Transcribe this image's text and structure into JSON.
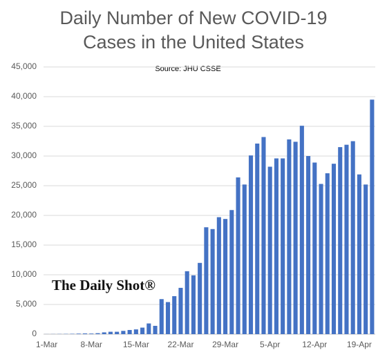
{
  "chart_data": {
    "type": "bar",
    "title_lines": [
      "Daily Number of New COVID-19",
      "Cases in the United States"
    ],
    "subtitle": "Source: JHU CSSE",
    "annotation": "The Daily Shot®",
    "categories": [
      "1-Mar",
      null,
      null,
      null,
      null,
      null,
      null,
      "8-Mar",
      null,
      null,
      null,
      null,
      null,
      null,
      "15-Mar",
      null,
      null,
      null,
      null,
      null,
      null,
      "22-Mar",
      null,
      null,
      null,
      null,
      null,
      null,
      "29-Mar",
      null,
      null,
      null,
      null,
      null,
      null,
      "5-Apr",
      null,
      null,
      null,
      null,
      null,
      null,
      "12-Apr",
      null,
      null,
      null,
      null,
      null,
      null,
      "19-Apr",
      null,
      null
    ],
    "values": [
      10,
      20,
      30,
      40,
      60,
      90,
      120,
      100,
      160,
      300,
      400,
      400,
      550,
      700,
      800,
      1100,
      1800,
      1400,
      5900,
      5400,
      6400,
      7800,
      10600,
      9900,
      12000,
      18000,
      17700,
      19700,
      19400,
      20900,
      26400,
      25200,
      30100,
      32100,
      33200,
      28200,
      29600,
      29600,
      32800,
      32400,
      35100,
      30000,
      28900,
      25300,
      27100,
      28700,
      31500,
      31900,
      32500,
      26900,
      25200,
      39500
    ],
    "color": "#4472c4",
    "ylim": [
      0,
      45000
    ],
    "yticks": [
      0,
      {
        "value": 5000,
        "label": "5,000"
      },
      {
        "value": 10000,
        "label": "10,000"
      },
      {
        "value": 15000,
        "label": "15,000"
      },
      {
        "value": 20000,
        "label": "20,000"
      },
      {
        "value": 25000,
        "label": "25,000"
      },
      {
        "value": 30000,
        "label": "30,000"
      },
      {
        "value": 35000,
        "label": "35,000"
      },
      {
        "value": 40000,
        "label": "40,000"
      },
      {
        "value": 45000,
        "label": "45,000"
      }
    ],
    "grid": true
  }
}
